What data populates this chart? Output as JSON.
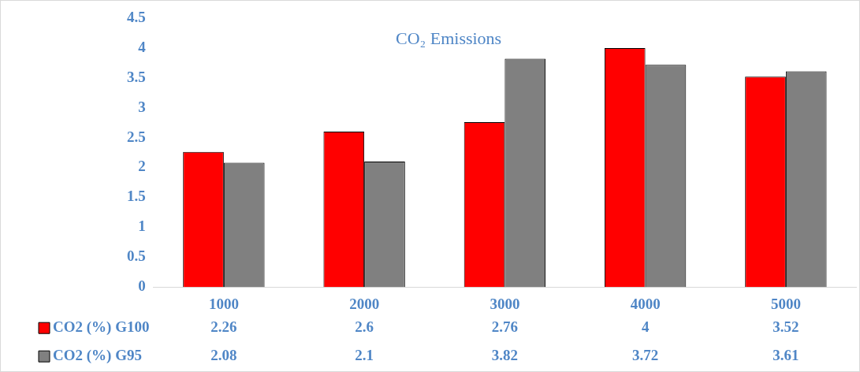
{
  "chart_data": {
    "type": "bar",
    "title": "CO₂ Emissions",
    "categories": [
      "1000",
      "2000",
      "3000",
      "4000",
      "5000"
    ],
    "series": [
      {
        "name": "CO2 (%) G100",
        "color": "#ff0000",
        "values": [
          2.26,
          2.6,
          2.76,
          4,
          3.52
        ]
      },
      {
        "name": "CO2 (%) G95",
        "color": "#808080",
        "values": [
          2.08,
          2.1,
          3.82,
          3.72,
          3.61
        ]
      }
    ],
    "ylim": [
      0,
      4.5
    ],
    "yticks": [
      0,
      0.5,
      1,
      1.5,
      2,
      2.5,
      3,
      3.5,
      4,
      4.5
    ],
    "grid": false,
    "legend": "bottom",
    "data_labels": true
  }
}
